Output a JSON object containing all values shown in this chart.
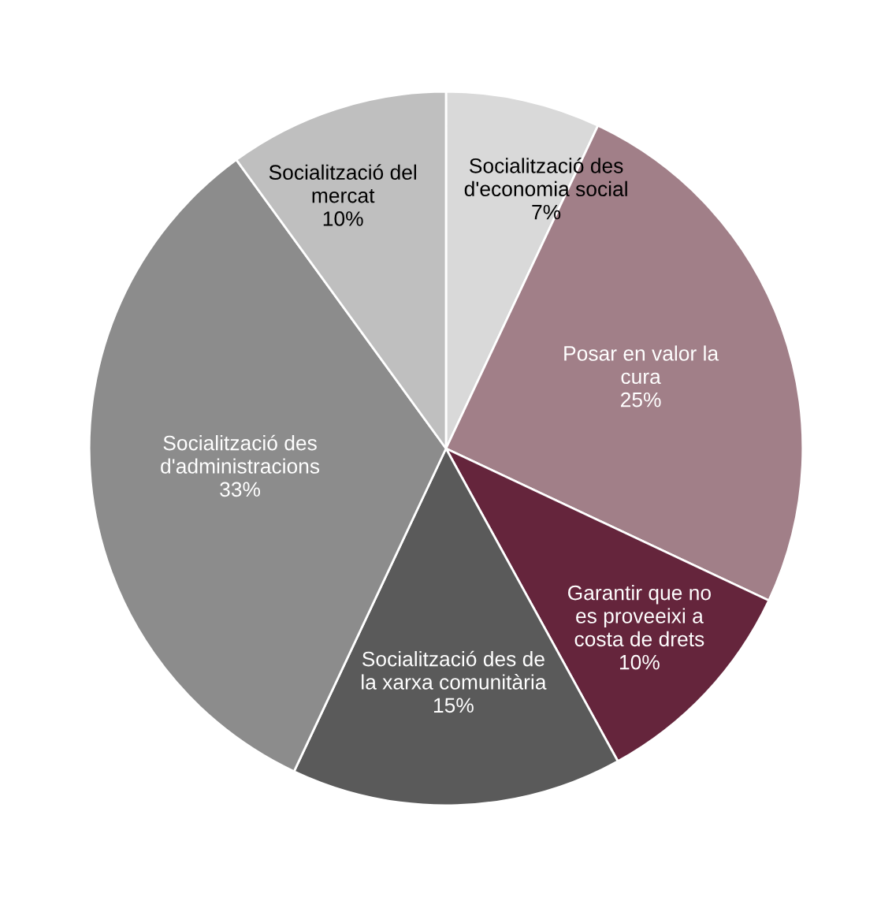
{
  "chart_data": {
    "type": "pie",
    "categories": [
      "Socialització des\nd'economia social",
      "Posar en valor la\ncura",
      "Garantir que no\nes proveeixi a\ncosta de drets",
      "Socialització des de\nla xarxa comunitària",
      "Socialització des\nd'administracions",
      "Socialització del\nmercat"
    ],
    "values": [
      7,
      25,
      10,
      15,
      33,
      10
    ],
    "value_labels": [
      "7%",
      "25%",
      "10%",
      "15%",
      "33%",
      "10%"
    ],
    "colors": [
      "#d9d9d9",
      "#a17f88",
      "#65253c",
      "#5a5a5a",
      "#8c8c8c",
      "#bfbfbf"
    ]
  }
}
